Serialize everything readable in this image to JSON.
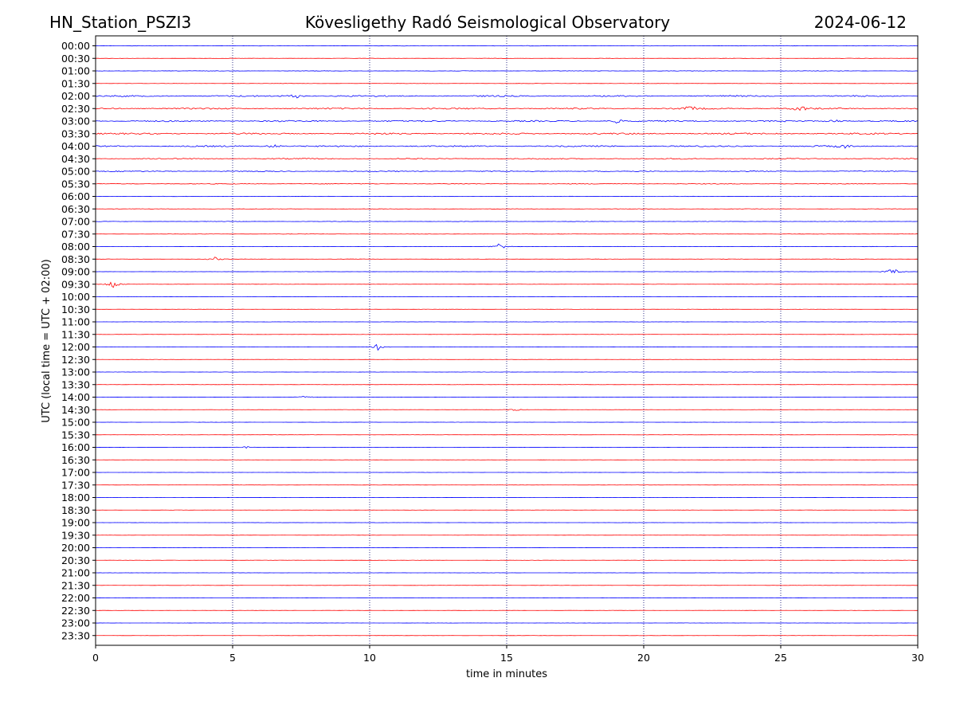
{
  "header": {
    "station": "HN_Station_PSZI3",
    "observatory": "Kövesligethy Radó Seismological Observatory",
    "date": "2024-06-12"
  },
  "chart_data": {
    "type": "line",
    "title": "Kövesligethy Radó Seismological Observatory",
    "xlabel": "time in minutes",
    "ylabel": "UTC (local time = UTC + 02:00)",
    "xlim": [
      0,
      30
    ],
    "x_ticks": [
      0,
      5,
      10,
      15,
      20,
      25,
      30
    ],
    "x_gridlines": [
      5,
      10,
      15,
      20,
      25
    ],
    "row_labels": [
      "00:00",
      "00:30",
      "01:00",
      "01:30",
      "02:00",
      "02:30",
      "03:00",
      "03:30",
      "04:00",
      "04:30",
      "05:00",
      "05:30",
      "06:00",
      "06:30",
      "07:00",
      "07:30",
      "08:00",
      "08:30",
      "09:00",
      "09:30",
      "10:00",
      "10:30",
      "11:00",
      "11:30",
      "12:00",
      "12:30",
      "13:00",
      "13:30",
      "14:00",
      "14:30",
      "15:00",
      "15:30",
      "16:00",
      "16:30",
      "17:00",
      "17:30",
      "18:00",
      "18:30",
      "19:00",
      "19:30",
      "20:00",
      "20:30",
      "21:00",
      "21:30",
      "22:00",
      "22:30",
      "23:00",
      "23:30"
    ],
    "colors": {
      "even_rows": "#0000ff",
      "odd_rows": "#ff0000",
      "grid": "#00006e"
    },
    "noise_level": [
      0.3,
      0.2,
      0.3,
      0.2,
      0.9,
      0.9,
      0.9,
      1.0,
      0.9,
      0.7,
      0.6,
      0.45,
      0.25,
      0.25,
      0.25,
      0.22,
      0.2,
      0.2,
      0.15,
      0.15,
      0.15,
      0.15,
      0.15,
      0.15,
      0.15,
      0.15,
      0.15,
      0.15,
      0.15,
      0.15,
      0.12,
      0.15,
      0.12,
      0.12,
      0.12,
      0.12,
      0.12,
      0.12,
      0.12,
      0.12,
      0.12,
      0.15,
      0.12,
      0.12,
      0.12,
      0.12,
      0.12,
      0.12
    ],
    "events": [
      {
        "row": "02:00",
        "minute": 7.3,
        "amplitude": 3
      },
      {
        "row": "02:30",
        "minute": 21.7,
        "amplitude": 3
      },
      {
        "row": "02:30",
        "minute": 25.7,
        "amplitude": 4
      },
      {
        "row": "03:00",
        "minute": 19.0,
        "amplitude": 2.5
      },
      {
        "row": "03:00",
        "minute": 27.0,
        "amplitude": 2.5
      },
      {
        "row": "04:00",
        "minute": 6.5,
        "amplitude": 2.5
      },
      {
        "row": "04:00",
        "minute": 27.3,
        "amplitude": 2.5
      },
      {
        "row": "08:00",
        "minute": 14.75,
        "amplitude": 5
      },
      {
        "row": "08:30",
        "minute": 4.35,
        "amplitude": 2.5
      },
      {
        "row": "09:00",
        "minute": 29.1,
        "amplitude": 5
      },
      {
        "row": "09:30",
        "minute": 0.65,
        "amplitude": 6
      },
      {
        "row": "12:00",
        "minute": 10.3,
        "amplitude": 4
      },
      {
        "row": "14:00",
        "minute": 7.7,
        "amplitude": 2
      },
      {
        "row": "14:30",
        "minute": 15.3,
        "amplitude": 1.5
      },
      {
        "row": "16:00",
        "minute": 5.5,
        "amplitude": 1.5
      }
    ]
  }
}
